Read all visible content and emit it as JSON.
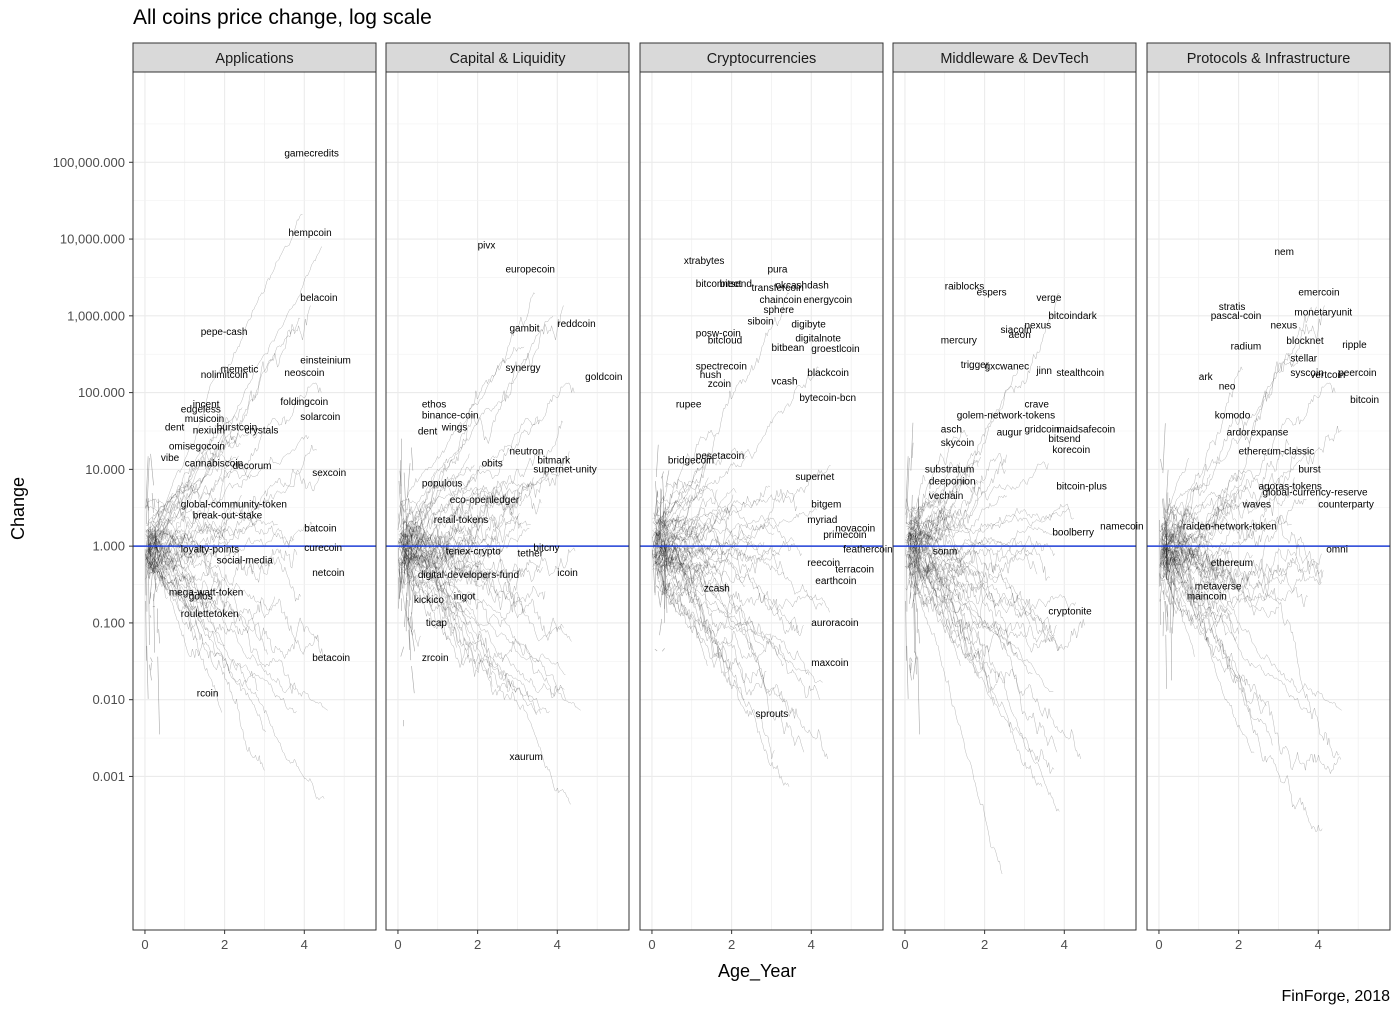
{
  "title": "All coins price change, log scale",
  "caption": "FinForge, 2018",
  "chart_data": {
    "type": "line",
    "title": "All coins price change, log scale",
    "xlabel": "Age_Year",
    "ylabel": "Change",
    "y_scale": "log10",
    "xlim": [
      -0.3,
      5.8
    ],
    "ylim": [
      1e-05,
      1500000
    ],
    "x_ticks": [
      0,
      2,
      4
    ],
    "x_tick_labels": [
      "0",
      "2",
      "4"
    ],
    "y_ticks": [
      0.001,
      0.01,
      0.1,
      1,
      10,
      100,
      1000,
      10000,
      100000
    ],
    "y_tick_labels": [
      "0.001",
      "0.010",
      "0.100",
      "1.000",
      "10.000",
      "100.000",
      "1,000.000",
      "10,000.000",
      "100,000.000"
    ],
    "reference_line": {
      "y": 1,
      "color": "#1f3fd6"
    },
    "grid": true,
    "facets": [
      {
        "name": "Applications",
        "labels": [
          {
            "text": "gamecredits",
            "x": 3.5,
            "y": 130000
          },
          {
            "text": "hempcoin",
            "x": 3.6,
            "y": 12000
          },
          {
            "text": "belacoin",
            "x": 3.9,
            "y": 1700
          },
          {
            "text": "pepe-cash",
            "x": 1.4,
            "y": 620
          },
          {
            "text": "einsteinium",
            "x": 3.9,
            "y": 260
          },
          {
            "text": "memetic",
            "x": 1.9,
            "y": 200
          },
          {
            "text": "neoscoin",
            "x": 3.5,
            "y": 180
          },
          {
            "text": "nolimitcoin",
            "x": 1.4,
            "y": 170
          },
          {
            "text": "foldingcoin",
            "x": 3.4,
            "y": 75
          },
          {
            "text": "solarcoin",
            "x": 3.9,
            "y": 48
          },
          {
            "text": "incent",
            "x": 1.2,
            "y": 70
          },
          {
            "text": "edgeless",
            "x": 0.9,
            "y": 60
          },
          {
            "text": "musicoin",
            "x": 1.0,
            "y": 45
          },
          {
            "text": "dent",
            "x": 0.5,
            "y": 35
          },
          {
            "text": "nexium",
            "x": 1.2,
            "y": 32
          },
          {
            "text": "burstcoin",
            "x": 1.8,
            "y": 35
          },
          {
            "text": "crystals",
            "x": 2.5,
            "y": 32
          },
          {
            "text": "omisegocoin",
            "x": 0.6,
            "y": 20
          },
          {
            "text": "vibe",
            "x": 0.4,
            "y": 14
          },
          {
            "text": "cannabiscoin",
            "x": 1.0,
            "y": 12
          },
          {
            "text": "decorum",
            "x": 2.2,
            "y": 11
          },
          {
            "text": "sexcoin",
            "x": 4.2,
            "y": 9
          },
          {
            "text": "global-community-token",
            "x": 0.9,
            "y": 3.5
          },
          {
            "text": "break-out-stake",
            "x": 1.2,
            "y": 2.5
          },
          {
            "text": "batcoin",
            "x": 4.0,
            "y": 1.7
          },
          {
            "text": "loyalty-points",
            "x": 0.9,
            "y": 0.9
          },
          {
            "text": "curecoin",
            "x": 4.0,
            "y": 0.95
          },
          {
            "text": "social-media",
            "x": 1.8,
            "y": 0.65
          },
          {
            "text": "netcoin",
            "x": 4.2,
            "y": 0.45
          },
          {
            "text": "mega-watt-token",
            "x": 0.6,
            "y": 0.25
          },
          {
            "text": "golos",
            "x": 1.1,
            "y": 0.22
          },
          {
            "text": "roulettetoken",
            "x": 0.9,
            "y": 0.13
          },
          {
            "text": "betacoin",
            "x": 4.2,
            "y": 0.035
          },
          {
            "text": "rcoin",
            "x": 1.3,
            "y": 0.012
          }
        ]
      },
      {
        "name": "Capital & Liquidity",
        "labels": [
          {
            "text": "pivx",
            "x": 2.0,
            "y": 8200
          },
          {
            "text": "europecoin",
            "x": 2.7,
            "y": 4000
          },
          {
            "text": "gambit",
            "x": 2.8,
            "y": 680
          },
          {
            "text": "reddcoin",
            "x": 4.0,
            "y": 780
          },
          {
            "text": "synergy",
            "x": 2.7,
            "y": 210
          },
          {
            "text": "goldcoin",
            "x": 4.7,
            "y": 160
          },
          {
            "text": "ethos",
            "x": 0.6,
            "y": 70
          },
          {
            "text": "binance-coin",
            "x": 0.6,
            "y": 50
          },
          {
            "text": "wings",
            "x": 1.1,
            "y": 35
          },
          {
            "text": "dent",
            "x": 0.5,
            "y": 31
          },
          {
            "text": "neutron",
            "x": 2.8,
            "y": 17
          },
          {
            "text": "obits",
            "x": 2.1,
            "y": 12
          },
          {
            "text": "bitmark",
            "x": 3.5,
            "y": 13
          },
          {
            "text": "supernet-unity",
            "x": 3.4,
            "y": 10
          },
          {
            "text": "populous",
            "x": 0.6,
            "y": 6.5
          },
          {
            "text": "eco-openledger",
            "x": 1.3,
            "y": 4
          },
          {
            "text": "retail-tokens",
            "x": 0.9,
            "y": 2.2
          },
          {
            "text": "tenex-crypto",
            "x": 1.2,
            "y": 0.85
          },
          {
            "text": "digital-developers-fund",
            "x": 0.5,
            "y": 0.42
          },
          {
            "text": "bitcny",
            "x": 3.4,
            "y": 0.95
          },
          {
            "text": "tether",
            "x": 3.0,
            "y": 0.8
          },
          {
            "text": "icoin",
            "x": 4.0,
            "y": 0.45
          },
          {
            "text": "kickico",
            "x": 0.4,
            "y": 0.2
          },
          {
            "text": "ingot",
            "x": 1.4,
            "y": 0.22
          },
          {
            "text": "ticap",
            "x": 0.7,
            "y": 0.1
          },
          {
            "text": "zrcoin",
            "x": 0.6,
            "y": 0.035
          },
          {
            "text": "xaurum",
            "x": 2.8,
            "y": 0.0018
          }
        ]
      },
      {
        "name": "Cryptocurrencies",
        "labels": [
          {
            "text": "xtrabytes",
            "x": 0.8,
            "y": 5200
          },
          {
            "text": "pura",
            "x": 2.9,
            "y": 4000
          },
          {
            "text": "bitconnect",
            "x": 1.1,
            "y": 2600
          },
          {
            "text": "bitsend",
            "x": 1.7,
            "y": 2600
          },
          {
            "text": "okcashdash",
            "x": 3.1,
            "y": 2500
          },
          {
            "text": "transfercoin",
            "x": 2.5,
            "y": 2300
          },
          {
            "text": "chaincoin",
            "x": 2.7,
            "y": 1600
          },
          {
            "text": "energycoin",
            "x": 3.8,
            "y": 1600
          },
          {
            "text": "sphere",
            "x": 2.8,
            "y": 1200
          },
          {
            "text": "siboin",
            "x": 2.4,
            "y": 850
          },
          {
            "text": "digibyte",
            "x": 3.5,
            "y": 770
          },
          {
            "text": "posw-coin",
            "x": 1.1,
            "y": 590
          },
          {
            "text": "bitcloud",
            "x": 1.4,
            "y": 480
          },
          {
            "text": "bitbean",
            "x": 3.0,
            "y": 380
          },
          {
            "text": "groestlcoin",
            "x": 4.0,
            "y": 370
          },
          {
            "text": "digitalnote",
            "x": 3.6,
            "y": 510
          },
          {
            "text": "spectrecoin",
            "x": 1.1,
            "y": 220
          },
          {
            "text": "blackcoin",
            "x": 3.9,
            "y": 180
          },
          {
            "text": "hush",
            "x": 1.2,
            "y": 170
          },
          {
            "text": "zcoin",
            "x": 1.4,
            "y": 130
          },
          {
            "text": "vcash",
            "x": 3.0,
            "y": 140
          },
          {
            "text": "bytecoin-bcn",
            "x": 3.7,
            "y": 85
          },
          {
            "text": "rupee",
            "x": 0.6,
            "y": 70
          },
          {
            "text": "pesetacoin",
            "x": 1.1,
            "y": 15
          },
          {
            "text": "bridgecoin",
            "x": 0.4,
            "y": 13
          },
          {
            "text": "supernet",
            "x": 3.6,
            "y": 8
          },
          {
            "text": "bitgem",
            "x": 4.0,
            "y": 3.5
          },
          {
            "text": "myriad",
            "x": 3.9,
            "y": 2.2
          },
          {
            "text": "novacoin",
            "x": 4.6,
            "y": 1.7
          },
          {
            "text": "primecoin",
            "x": 4.3,
            "y": 1.4
          },
          {
            "text": "feathercoin",
            "x": 4.8,
            "y": 0.9
          },
          {
            "text": "reecoin",
            "x": 3.9,
            "y": 0.6
          },
          {
            "text": "terracoin",
            "x": 4.6,
            "y": 0.5
          },
          {
            "text": "earthcoin",
            "x": 4.1,
            "y": 0.35
          },
          {
            "text": "zcash",
            "x": 1.3,
            "y": 0.28
          },
          {
            "text": "auroracoin",
            "x": 4.0,
            "y": 0.1
          },
          {
            "text": "maxcoin",
            "x": 4.0,
            "y": 0.03
          },
          {
            "text": "sprouts",
            "x": 2.6,
            "y": 0.0065
          }
        ]
      },
      {
        "name": "Middleware & DevTech",
        "labels": [
          {
            "text": "verge",
            "x": 3.3,
            "y": 1700
          },
          {
            "text": "raiblocks",
            "x": 1.0,
            "y": 2400
          },
          {
            "text": "espers",
            "x": 1.8,
            "y": 2000
          },
          {
            "text": "bitcoindark",
            "x": 3.6,
            "y": 1000
          },
          {
            "text": "nexus",
            "x": 3.0,
            "y": 750
          },
          {
            "text": "siacoin",
            "x": 2.4,
            "y": 650
          },
          {
            "text": "aeon",
            "x": 2.6,
            "y": 560
          },
          {
            "text": "mercury",
            "x": 0.9,
            "y": 480
          },
          {
            "text": "trigger",
            "x": 1.4,
            "y": 230
          },
          {
            "text": "gxcwanec",
            "x": 2.0,
            "y": 220
          },
          {
            "text": "jinn",
            "x": 3.3,
            "y": 190
          },
          {
            "text": "stealthcoin",
            "x": 3.8,
            "y": 180
          },
          {
            "text": "crave",
            "x": 3.0,
            "y": 70
          },
          {
            "text": "golem-network-tokens",
            "x": 1.3,
            "y": 50
          },
          {
            "text": "asch",
            "x": 0.9,
            "y": 33
          },
          {
            "text": "augur",
            "x": 2.3,
            "y": 30
          },
          {
            "text": "gridcoin",
            "x": 3.0,
            "y": 33
          },
          {
            "text": "maidsafecoin",
            "x": 3.8,
            "y": 33
          },
          {
            "text": "bitsend",
            "x": 3.6,
            "y": 25
          },
          {
            "text": "korecoin",
            "x": 3.7,
            "y": 18
          },
          {
            "text": "skycoin",
            "x": 0.9,
            "y": 22
          },
          {
            "text": "substratum",
            "x": 0.5,
            "y": 10
          },
          {
            "text": "deeponion",
            "x": 0.6,
            "y": 7
          },
          {
            "text": "vechain",
            "x": 0.6,
            "y": 4.5
          },
          {
            "text": "bitcoin-plus",
            "x": 3.8,
            "y": 6
          },
          {
            "text": "namecoin",
            "x": 4.9,
            "y": 1.8
          },
          {
            "text": "boolberry",
            "x": 3.7,
            "y": 1.5
          },
          {
            "text": "sonm",
            "x": 0.7,
            "y": 0.85
          },
          {
            "text": "cryptonite",
            "x": 3.6,
            "y": 0.14
          }
        ]
      },
      {
        "name": "Protocols & Infrastructure",
        "labels": [
          {
            "text": "nem",
            "x": 2.9,
            "y": 6800
          },
          {
            "text": "emercoin",
            "x": 3.5,
            "y": 2000
          },
          {
            "text": "stratis",
            "x": 1.5,
            "y": 1300
          },
          {
            "text": "pascal-coin",
            "x": 1.3,
            "y": 1000
          },
          {
            "text": "monetaryunit",
            "x": 3.4,
            "y": 1100
          },
          {
            "text": "nexus",
            "x": 2.8,
            "y": 750
          },
          {
            "text": "blocknet",
            "x": 3.2,
            "y": 470
          },
          {
            "text": "ripple",
            "x": 4.6,
            "y": 420
          },
          {
            "text": "radium",
            "x": 1.8,
            "y": 400
          },
          {
            "text": "stellar",
            "x": 3.3,
            "y": 280
          },
          {
            "text": "syscoin",
            "x": 3.3,
            "y": 180
          },
          {
            "text": "vertcoin",
            "x": 3.8,
            "y": 170
          },
          {
            "text": "peercoin",
            "x": 4.5,
            "y": 180
          },
          {
            "text": "ark",
            "x": 1.0,
            "y": 160
          },
          {
            "text": "neo",
            "x": 1.5,
            "y": 120
          },
          {
            "text": "bitcoin",
            "x": 4.8,
            "y": 80
          },
          {
            "text": "komodo",
            "x": 1.4,
            "y": 50
          },
          {
            "text": "ardor",
            "x": 1.7,
            "y": 30
          },
          {
            "text": "expanse",
            "x": 2.3,
            "y": 30
          },
          {
            "text": "ethereum-classic",
            "x": 2.0,
            "y": 17
          },
          {
            "text": "counterparty",
            "x": 4.0,
            "y": 3.5
          },
          {
            "text": "burst",
            "x": 3.5,
            "y": 10
          },
          {
            "text": "agoras-tokens",
            "x": 2.5,
            "y": 6
          },
          {
            "text": "global-currency-reserve",
            "x": 2.6,
            "y": 5
          },
          {
            "text": "waves",
            "x": 2.1,
            "y": 3.5
          },
          {
            "text": "raiden-network-token",
            "x": 0.6,
            "y": 1.8
          },
          {
            "text": "omni",
            "x": 4.2,
            "y": 0.9
          },
          {
            "text": "ethereum",
            "x": 1.3,
            "y": 0.6
          },
          {
            "text": "metaverse",
            "x": 0.9,
            "y": 0.3
          },
          {
            "text": "maincoin",
            "x": 0.7,
            "y": 0.22
          }
        ]
      }
    ]
  }
}
